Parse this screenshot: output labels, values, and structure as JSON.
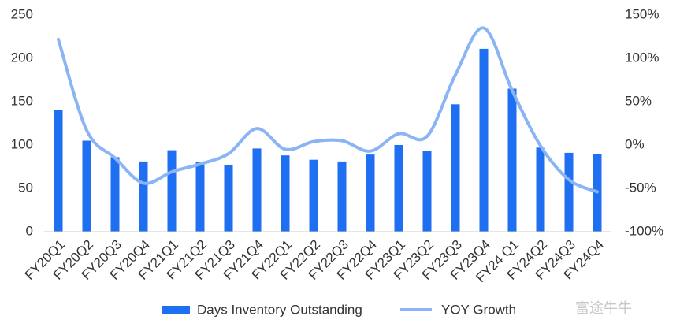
{
  "chart_data": {
    "type": "bar-line",
    "categories": [
      "FY20Q1",
      "FY20Q2",
      "FY20Q3",
      "FY20Q4",
      "FY21Q1",
      "FY21Q2",
      "FY21Q3",
      "FY21Q4",
      "FY22Q1",
      "FY22Q2",
      "FY22Q3",
      "FY22Q4",
      "FY23Q1",
      "FY23Q2",
      "FY23Q3",
      "FY23Q4",
      "FY24 Q1",
      "FY24Q2",
      "FY24Q3",
      "FY24Q4"
    ],
    "series": [
      {
        "name": "Days Inventory Outstanding",
        "type": "bar",
        "color": "#1f6ff2",
        "values": [
          140,
          105,
          86,
          81,
          94,
          80,
          77,
          96,
          88,
          83,
          81,
          89,
          100,
          93,
          147,
          211,
          165,
          97,
          91,
          90
        ]
      },
      {
        "name": "YOY Growth",
        "type": "line",
        "axis": "y2",
        "color": "#8ab4f4",
        "values": [
          122,
          17,
          -15,
          -44,
          -31,
          -22,
          -10,
          19,
          -5,
          4,
          5,
          -7,
          13,
          10,
          81,
          135,
          63,
          -1,
          -40,
          -54
        ]
      }
    ],
    "ylim": [
      0,
      250
    ],
    "yticks": [
      0,
      50,
      100,
      150,
      200,
      250
    ],
    "y2lim": [
      -100,
      150
    ],
    "y2ticks": [
      {
        "value": -100,
        "label": "-100%"
      },
      {
        "value": -50,
        "label": "-50%"
      },
      {
        "value": 0,
        "label": "0%"
      },
      {
        "value": 50,
        "label": "50%"
      },
      {
        "value": 100,
        "label": "100%"
      },
      {
        "value": 150,
        "label": "150%"
      }
    ],
    "watermark": "富途牛牛"
  }
}
